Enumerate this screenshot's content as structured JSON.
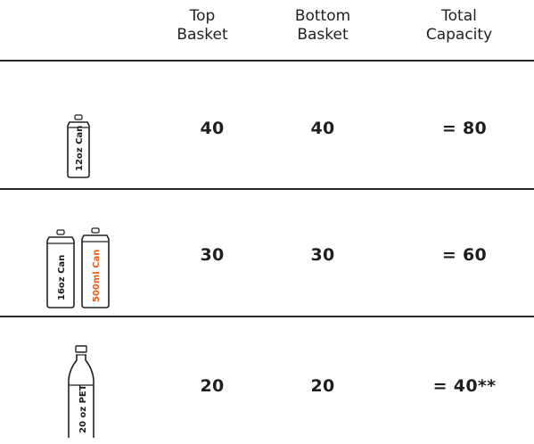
{
  "headers": {
    "top": [
      "Top",
      "Basket"
    ],
    "bottom": [
      "Bottom",
      "Basket"
    ],
    "total": [
      "Total",
      "Capacity"
    ]
  },
  "rows": [
    {
      "icon": "12oz-can-icon",
      "labels": [
        "12oz Can"
      ],
      "top": "40",
      "bottom": "40",
      "total": "= 80"
    },
    {
      "icon": "16oz-and-500ml-cans-icon",
      "labels": [
        "16oz Can",
        "500ml Can"
      ],
      "top": "30",
      "bottom": "30",
      "total": "= 60"
    },
    {
      "icon": "20oz-pet-bottle-icon",
      "labels": [
        "20 oz PET"
      ],
      "top": "20",
      "bottom": "20",
      "total": "= 40**"
    }
  ],
  "colors": {
    "accent": "#e8601c",
    "ink": "#1a1a1a"
  }
}
